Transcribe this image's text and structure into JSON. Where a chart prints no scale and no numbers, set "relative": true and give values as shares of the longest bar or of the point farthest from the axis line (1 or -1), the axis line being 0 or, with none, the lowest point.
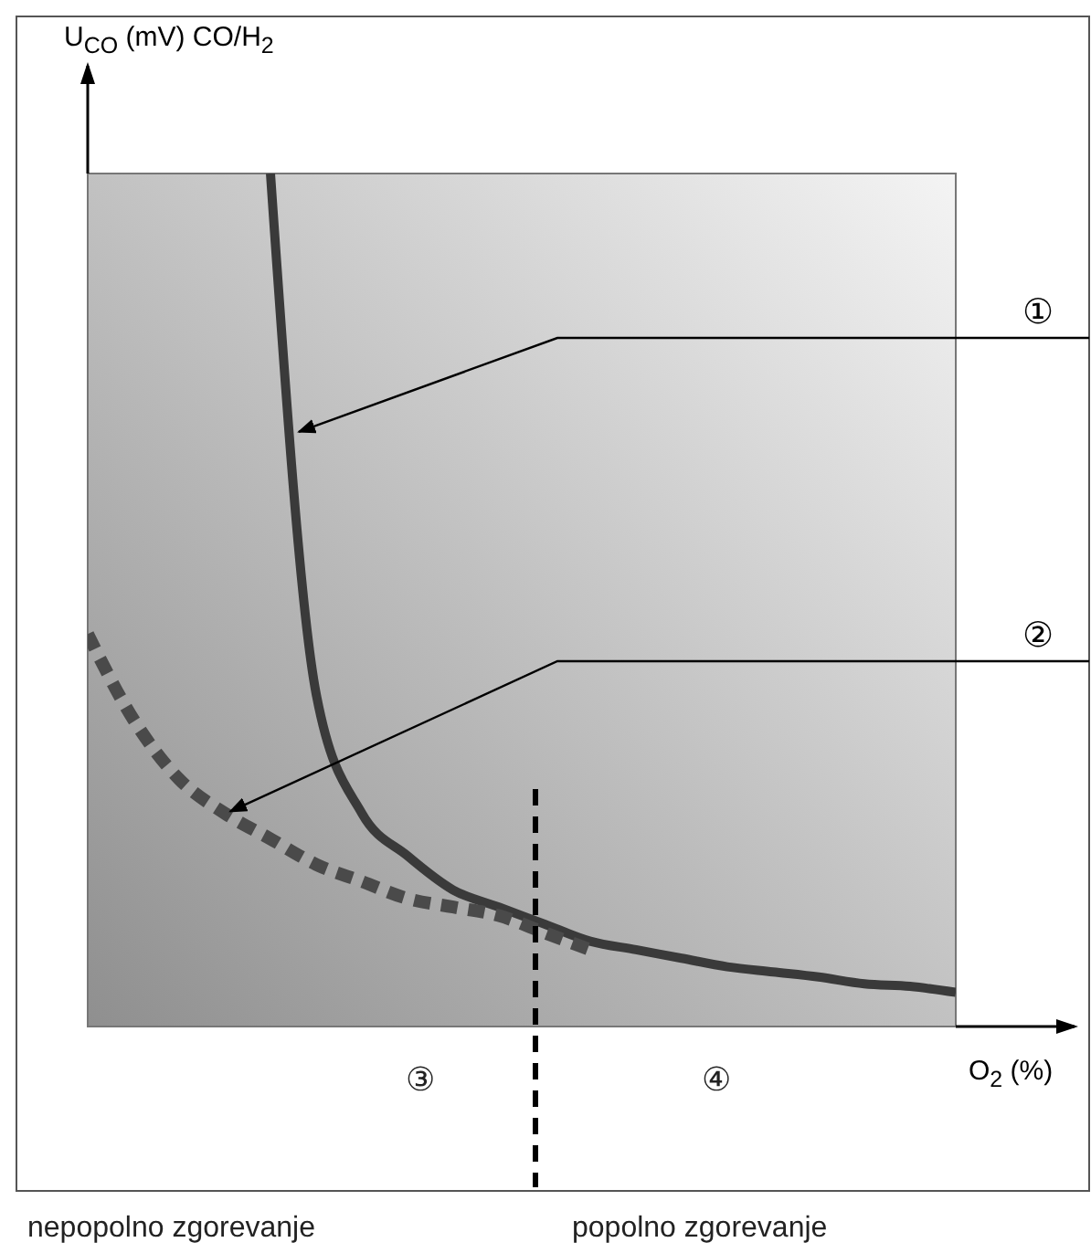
{
  "chart_data": {
    "type": "line",
    "relative": true,
    "ylabel": "U$_{CO}$ (mV) CO/H$_{2}$",
    "xlabel": "O$_{2}$ (%)",
    "categories": [
      null,
      null,
      null,
      null,
      null,
      null,
      null,
      null,
      null,
      null,
      null,
      null,
      null,
      null,
      null,
      null,
      null,
      null,
      null,
      null
    ],
    "series": [
      {
        "name": "①",
        "color": "#3a3a3a",
        "line_style": "solid",
        "values": [
          null,
          null,
          null,
          null,
          1.0,
          0.39,
          0.25,
          0.2,
          0.16,
          0.14,
          0.12,
          0.1,
          0.09,
          0.08,
          0.07,
          0.064,
          0.058,
          0.05,
          0.047,
          0.04
        ]
      },
      {
        "name": "②",
        "color": "#4a4a4a",
        "line_style": "dashed",
        "values": [
          0.46,
          0.36,
          0.29,
          0.25,
          0.22,
          0.19,
          0.17,
          0.15,
          0.14,
          0.13,
          0.11,
          0.09,
          null,
          null,
          null,
          null,
          null,
          null,
          null,
          null
        ]
      }
    ],
    "annotations": [
      "③",
      "④",
      "nepopolno zgorevanje",
      "popolno zgorevanje"
    ],
    "grid": false,
    "marker": "none"
  }
}
